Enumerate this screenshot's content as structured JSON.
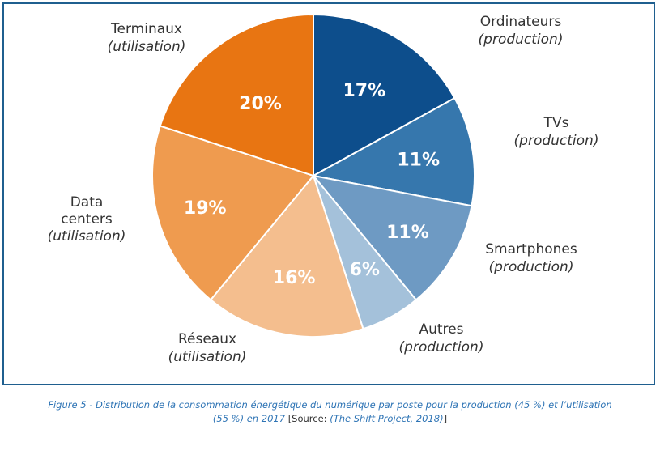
{
  "chart_data": {
    "type": "pie",
    "start_angle_deg": 0,
    "direction": "clockwise",
    "slices": [
      {
        "label": "Ordinateurs",
        "kind": "(production)",
        "value": 17,
        "value_label": "17%",
        "color": "#0d4e8c"
      },
      {
        "label": "TVs",
        "kind": "(production)",
        "value": 11,
        "value_label": "11%",
        "color": "#3677ad"
      },
      {
        "label": "Smartphones",
        "kind": "(production)",
        "value": 11,
        "value_label": "11%",
        "color": "#6e9ac3"
      },
      {
        "label": "Autres",
        "kind": "(production)",
        "value": 6,
        "value_label": "6%",
        "color": "#a4c1da"
      },
      {
        "label": "Réseaux",
        "kind": "(utilisation)",
        "value": 16,
        "value_label": "16%",
        "color": "#f4be8e"
      },
      {
        "label": "Data centers",
        "kind": "(utilisation)",
        "value": 19,
        "value_label": "19%",
        "color": "#ef9b4f"
      },
      {
        "label": "Terminaux",
        "kind": "(utilisation)",
        "value": 20,
        "value_label": "20%",
        "color": "#e87512"
      }
    ]
  },
  "caption": {
    "figure_text": "Figure 5 - Distribution de la consommation énergétique du numérique par poste pour la production (45 %) et l’utilisation",
    "figure_text_2": "(55 %) en 2017",
    "source_prefix": "[Source:",
    "source_name": "(The Shift Project, 2018)",
    "source_suffix": "]"
  },
  "colors": {
    "frame_border": "#1f5f8f",
    "caption_text": "#2e74b5"
  }
}
